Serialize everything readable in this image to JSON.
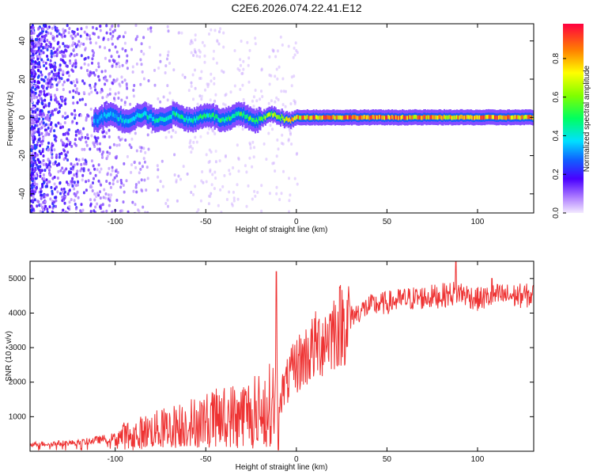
{
  "title": "C2E6.2026.074.22.41.E12",
  "chart_data": [
    {
      "type": "heatmap",
      "xlabel": "Height of straight line (km)",
      "ylabel": "Frequency (Hz)",
      "xlim": [
        -147,
        131
      ],
      "ylim": [
        -50,
        49
      ],
      "xticks": [
        -100,
        -50,
        0,
        50,
        100
      ],
      "yticks": [
        -40,
        -20,
        0,
        20,
        40
      ],
      "colorbar": {
        "label": "Normalized spectral amplitude",
        "range": [
          0,
          0.98
        ],
        "ticks": [
          0.0,
          0.2,
          0.4,
          0.6,
          0.8
        ]
      },
      "ridge": {
        "description": "peak near 0 Hz",
        "x": [
          -110,
          -100,
          -80,
          -60,
          -40,
          -20,
          -10,
          0,
          10,
          30,
          50,
          80,
          100,
          131
        ],
        "amplitude": [
          0.35,
          0.4,
          0.45,
          0.5,
          0.55,
          0.6,
          0.7,
          0.85,
          0.9,
          0.9,
          0.9,
          0.85,
          0.9,
          0.85
        ]
      }
    },
    {
      "type": "line",
      "xlabel": "Height of straight line (km)",
      "ylabel": "SNR (10 * v/v)",
      "xlim": [
        -147,
        131
      ],
      "ylim": [
        0,
        5500
      ],
      "xticks": [
        -100,
        -50,
        0,
        50,
        100
      ],
      "yticks": [
        1000,
        2000,
        3000,
        4000,
        5000
      ],
      "color": "#ee3333",
      "trend": {
        "x": [
          -147,
          -120,
          -100,
          -80,
          -60,
          -40,
          -20,
          -10,
          0,
          10,
          20,
          30,
          40,
          50,
          60,
          80,
          90,
          100,
          110,
          131
        ],
        "y": [
          200,
          250,
          400,
          600,
          800,
          1000,
          1200,
          1500,
          2500,
          3000,
          3500,
          3900,
          4200,
          4300,
          4400,
          4500,
          4600,
          4400,
          4500,
          4500
        ]
      },
      "spikes": [
        {
          "x": -11,
          "y": 5200
        },
        {
          "x": 88,
          "y": 5500
        },
        {
          "x": 108,
          "y": 5000
        }
      ]
    }
  ]
}
